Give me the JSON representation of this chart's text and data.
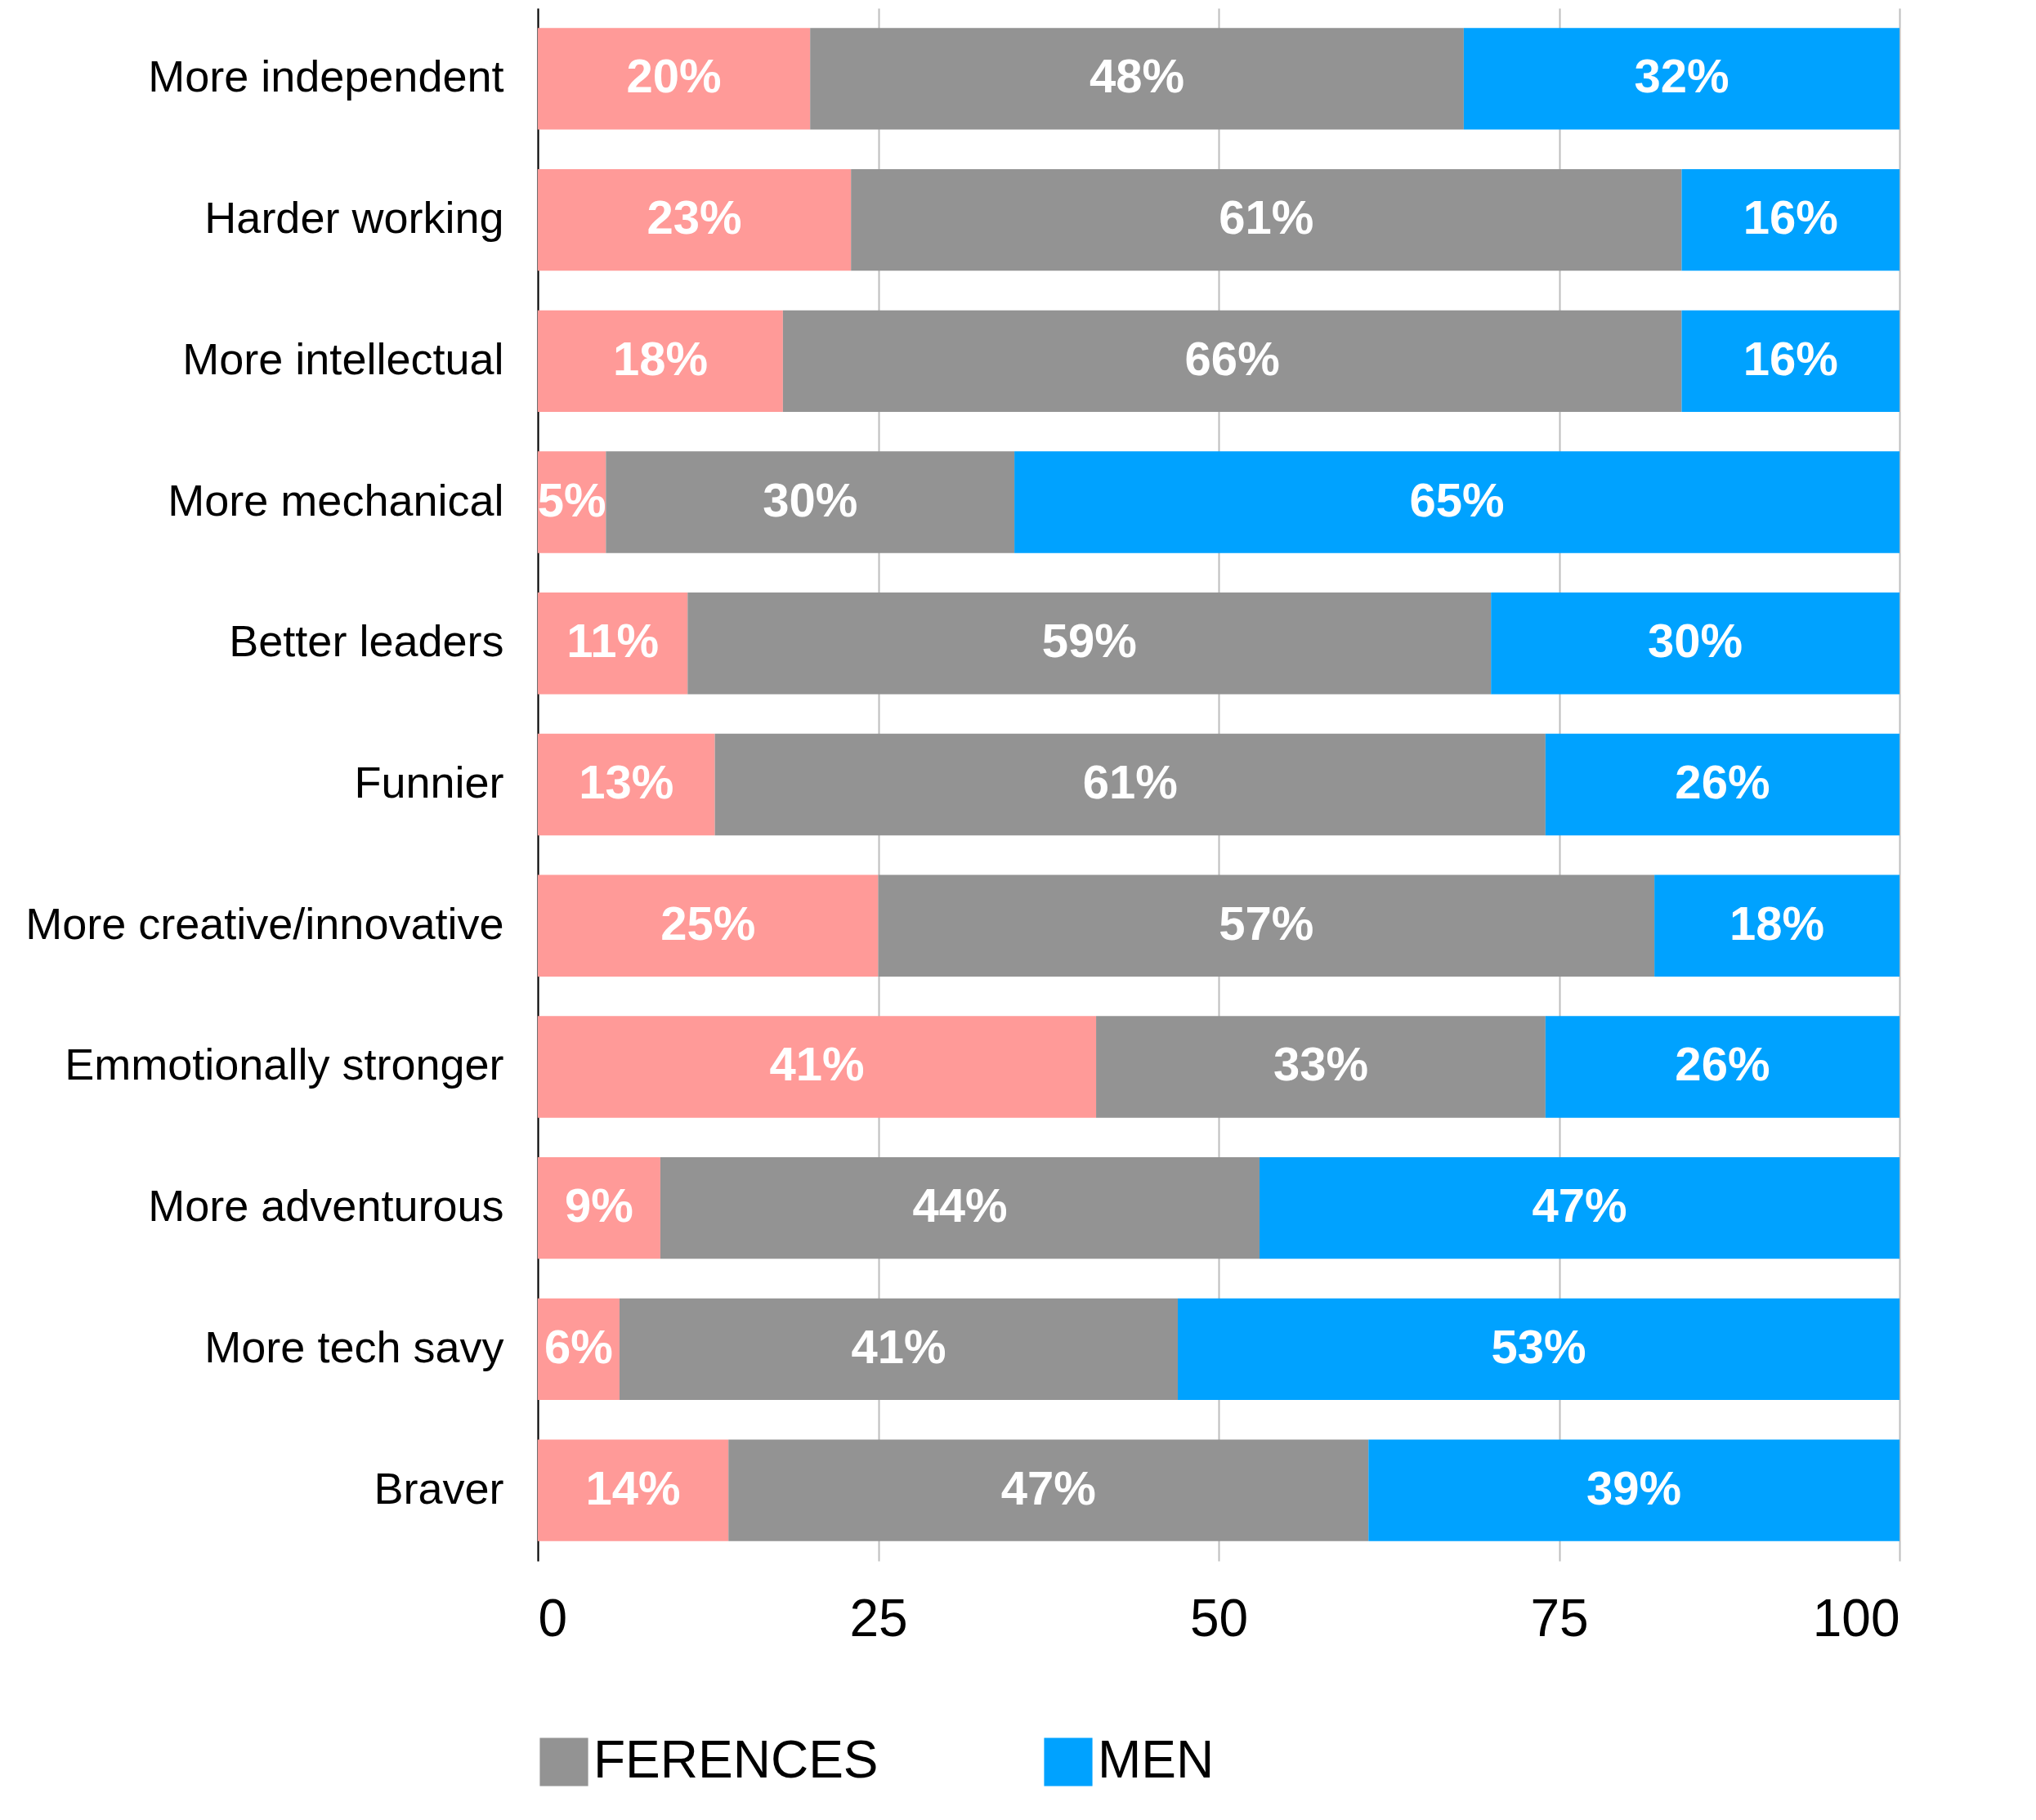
{
  "chart_data": {
    "type": "bar",
    "orientation": "horizontal",
    "stacked": true,
    "categories": [
      "More independent",
      "Harder working",
      "More intellectual",
      "More mechanical",
      "Better leaders",
      "Funnier",
      "More creative/innovative",
      "Emmotionally stronger",
      "More adventurous",
      "More tech savy",
      "Braver"
    ],
    "series": [
      {
        "color": "#ff9a98",
        "values": [
          20,
          23,
          18,
          5,
          11,
          13,
          25,
          41,
          9,
          6,
          14
        ],
        "value_labels": [
          "20%",
          "23%",
          "18%",
          "5%",
          "11%",
          "13%",
          "25%",
          "41%",
          "9%",
          "6%",
          "14%"
        ]
      },
      {
        "name": "FERENCES",
        "color": "#939393",
        "values": [
          48,
          61,
          66,
          30,
          59,
          61,
          57,
          33,
          44,
          41,
          47
        ],
        "value_labels": [
          "48%",
          "61%",
          "66%",
          "30%",
          "59%",
          "61%",
          "57%",
          "33%",
          "44%",
          "41%",
          "47%"
        ]
      },
      {
        "name": "MEN",
        "color": "#00a2ff",
        "values": [
          32,
          16,
          16,
          65,
          30,
          26,
          18,
          26,
          47,
          53,
          39
        ],
        "value_labels": [
          "32%",
          "16%",
          "16%",
          "65%",
          "30%",
          "26%",
          "18%",
          "26%",
          "47%",
          "53%",
          "39%"
        ]
      }
    ],
    "xlim": [
      0,
      100
    ],
    "xticks": [
      0,
      25,
      50,
      75,
      100
    ],
    "grid": "x",
    "legend": "bottom"
  }
}
